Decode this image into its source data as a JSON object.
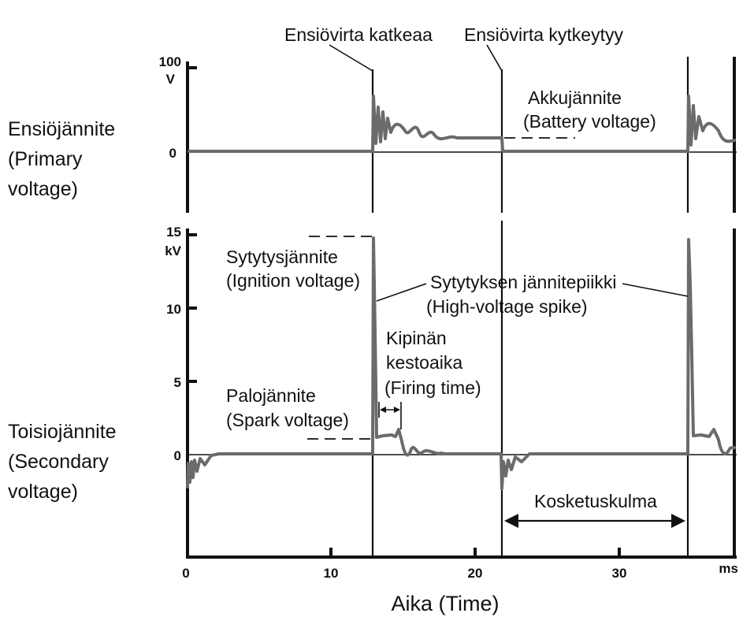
{
  "labels": {
    "primary_break": "Ensiövirta katkeaa",
    "primary_closes": "Ensiövirta kytkeytyy",
    "battery_fi": "Akkujännite",
    "battery_en": "(Battery voltage)",
    "primary_side_fi": "Ensiöjännite",
    "primary_side_en1": "(Primary",
    "primary_side_en2": "voltage)",
    "ignition_fi": "Sytytysjännite",
    "ignition_en": "(Ignition voltage)",
    "spike_fi": "Sytytyksen jännitepiikki",
    "spike_en": "(High-voltage spike)",
    "firing_fi1": "Kipinän",
    "firing_fi2": "kestoaika",
    "firing_en": "(Firing time)",
    "spark_fi": "Palojännite",
    "spark_en": "(Spark voltage)",
    "secondary_side_fi": "Toisiojännite",
    "secondary_side_en1": "(Secondary",
    "secondary_side_en2": "voltage)",
    "dwell": "Kosketuskulma",
    "time_axis": "Aika (Time)"
  },
  "primary_axis": {
    "ticks": [
      "100",
      "0"
    ],
    "unit": "V"
  },
  "secondary_axis": {
    "ticks": [
      "15",
      "10",
      "5",
      "0"
    ],
    "unit": "kV"
  },
  "time_ticks": [
    "0",
    "10",
    "20",
    "30"
  ],
  "time_unit": "ms",
  "colors": {
    "trace": "#6b6b6b",
    "ink": "#111111"
  }
}
